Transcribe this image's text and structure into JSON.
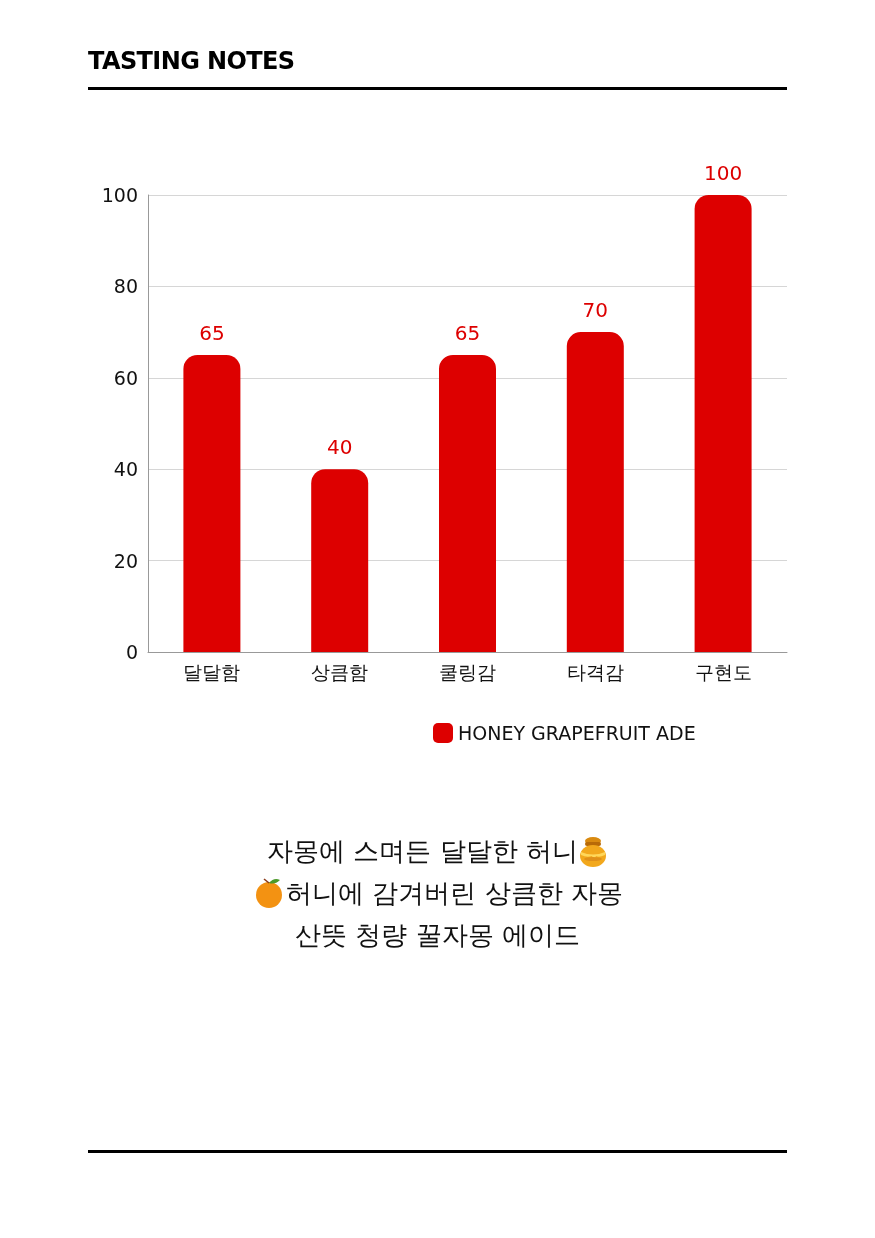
{
  "chart_data": {
    "type": "bar",
    "title": "TASTING NOTES",
    "categories": [
      "달달함",
      "상큼함",
      "쿨링감",
      "타격감",
      "구현도"
    ],
    "series": [
      {
        "name": "HONEY GRAPEFRUIT ADE",
        "color": "#dd0000",
        "values": [
          65,
          40,
          65,
          70,
          100
        ]
      }
    ],
    "ylim": [
      0,
      100
    ],
    "yticks": [
      0,
      20,
      40,
      60,
      80,
      100
    ],
    "grid": "y",
    "legend": "bottom",
    "data_labels": true,
    "annotations": [
      "자몽에 스며든 달달한 허니",
      "허니에 감겨버린 상큼한 자몽",
      "산뜻 청량 꿀자몽 에이드"
    ]
  }
}
